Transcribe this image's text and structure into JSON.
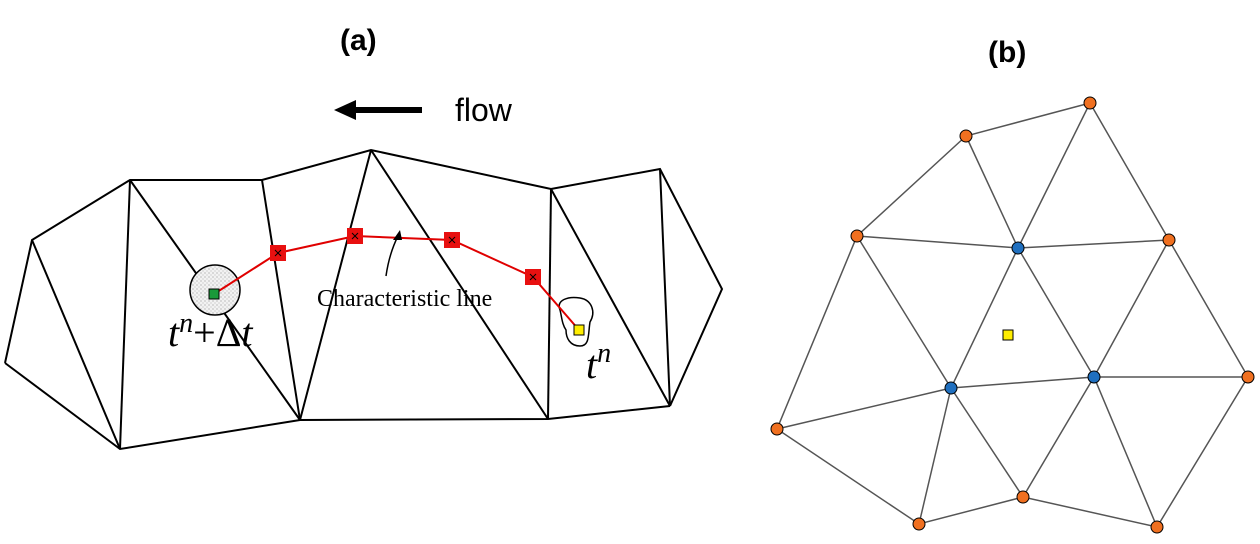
{
  "panel_a": {
    "label": "(a)",
    "flow_label": "flow",
    "characteristic_label": "Characteristic line",
    "time_start": {
      "base": "t",
      "sup": "n",
      "plus": "+",
      "delta": "Δ",
      "dt": "t"
    },
    "time_end": {
      "base": "t",
      "sup": "n"
    }
  },
  "panel_b": {
    "label": "(b)"
  },
  "colors": {
    "mesh": "#000000",
    "characteristic": "#e00000",
    "marker_red": "#e81010",
    "start_point": "#1a9a3a",
    "end_point": "#ffee00",
    "node_orange": "#f07020",
    "node_blue": "#1f6fbf",
    "mesh_b": "#555555"
  },
  "icons": {
    "flow_arrow": "left-arrow-icon",
    "char_pointer": "curved-pointer-icon"
  }
}
